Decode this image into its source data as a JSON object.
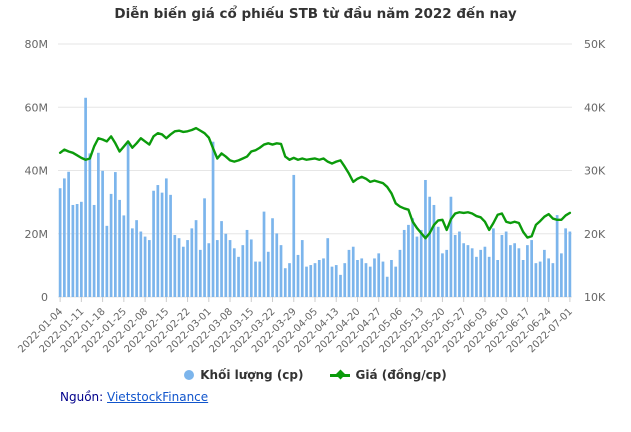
{
  "title": "Diễn biến giá cổ phiếu STB từ đầu năm 2022 đến nay",
  "legend": {
    "items": [
      {
        "label": "Khối lượng (cp)",
        "color": "#7cb5ec",
        "marker": "circle"
      },
      {
        "label": "Giá (đồng/cp)",
        "color": "#0b9b0b",
        "marker": "line-diamond"
      }
    ]
  },
  "source": {
    "prefix": "Nguồn:",
    "link": "VietstockFinance"
  },
  "colors": {
    "background": "#ffffff",
    "grid": "#e6e6e6",
    "axis_label": "#666666",
    "tick": "#cccccc",
    "title": "#333333",
    "source_prefix": "#00008b",
    "link": "#1155cc",
    "volume_bar": "#7cb5ec",
    "price_line": "#0b9b0b"
  },
  "chart_data": {
    "type": "combo",
    "title": "Diễn biến giá cổ phiếu STB từ đầu năm 2022 đến nay",
    "grid": true,
    "legend_position": "bottom",
    "x_tick_interval": 5,
    "x_tick_labels": [
      "2022-01-04",
      "2022-01-11",
      "2022-01-18",
      "2022-01-25",
      "2022-02-08",
      "2022-02-15",
      "2022-02-22",
      "2022-03-01",
      "2022-03-08",
      "2022-03-15",
      "2022-03-22",
      "2022-03-29",
      "2022-04-05",
      "2022-04-13",
      "2022-04-20",
      "2022-04-27",
      "2022-05-06",
      "2022-05-13",
      "2022-05-20",
      "2022-05-27",
      "2022-06-03",
      "2022-06-10",
      "2022-06-17",
      "2022-06-24",
      "2022-07-01"
    ],
    "left_axis": {
      "min": 0,
      "max": 80000000,
      "tick_labels": [
        "0",
        "20M",
        "40M",
        "60M",
        "80M"
      ]
    },
    "right_axis": {
      "min": 10000,
      "max": 50000,
      "tick_labels": [
        "10K",
        "20K",
        "30K",
        "40K",
        "50K"
      ]
    },
    "series": [
      {
        "name": "Khối lượng (cp)",
        "type": "bar",
        "y_axis": "left",
        "color": "#7cb5ec",
        "unit": "million shares",
        "values_millions": [
          34.4,
          37.5,
          39.6,
          29.1,
          29.4,
          30.1,
          63.0,
          45.4,
          29.1,
          45.6,
          39.9,
          22.5,
          32.6,
          39.5,
          30.7,
          25.8,
          49.3,
          21.7,
          24.3,
          20.7,
          19.1,
          18.0,
          33.6,
          35.4,
          33.0,
          37.5,
          32.3,
          19.6,
          18.6,
          15.9,
          18.0,
          21.7,
          24.3,
          14.9,
          31.2,
          17.0,
          49.1,
          18.0,
          24.0,
          20.0,
          18.0,
          15.4,
          12.7,
          16.4,
          21.2,
          18.2,
          11.2,
          11.2,
          27.0,
          14.3,
          24.9,
          20.1,
          16.4,
          9.1,
          10.7,
          38.6,
          13.3,
          18.0,
          9.6,
          10.1,
          10.7,
          11.7,
          12.2,
          18.6,
          9.6,
          10.1,
          7.0,
          10.7,
          14.9,
          15.9,
          11.7,
          12.2,
          10.7,
          9.6,
          12.2,
          13.8,
          11.2,
          6.4,
          11.7,
          9.6,
          14.9,
          21.2,
          22.8,
          24.9,
          19.1,
          21.2,
          37.0,
          31.7,
          29.1,
          22.2,
          13.8,
          14.9,
          31.7,
          19.6,
          20.7,
          17.0,
          16.4,
          15.4,
          12.7,
          14.9,
          15.9,
          12.7,
          21.7,
          11.7,
          19.6,
          20.7,
          16.4,
          17.0,
          15.4,
          11.7,
          16.4,
          18.0,
          10.7,
          11.2,
          14.9,
          12.2,
          10.7,
          25.9,
          13.8,
          21.7,
          20.7
        ]
      },
      {
        "name": "Giá (đồng/cp)",
        "type": "line",
        "y_axis": "right",
        "color": "#0b9b0b",
        "unit": "thousand dong per share",
        "values_thousands": [
          32.8,
          33.3,
          33.0,
          32.8,
          32.4,
          32.0,
          31.7,
          31.9,
          33.8,
          35.1,
          34.9,
          34.6,
          35.4,
          34.3,
          33.0,
          33.8,
          34.6,
          33.6,
          34.3,
          35.1,
          34.6,
          34.1,
          35.4,
          35.9,
          35.7,
          35.1,
          35.7,
          36.2,
          36.3,
          36.1,
          36.2,
          36.4,
          36.7,
          36.3,
          35.9,
          35.2,
          33.5,
          31.9,
          32.7,
          32.2,
          31.6,
          31.4,
          31.6,
          31.9,
          32.2,
          33.0,
          33.2,
          33.6,
          34.1,
          34.3,
          34.1,
          34.3,
          34.2,
          32.2,
          31.7,
          32.0,
          31.7,
          31.9,
          31.7,
          31.8,
          31.9,
          31.7,
          31.9,
          31.4,
          31.1,
          31.4,
          31.6,
          30.6,
          29.5,
          28.2,
          28.7,
          29.0,
          28.7,
          28.2,
          28.4,
          28.2,
          28.0,
          27.4,
          26.4,
          24.8,
          24.3,
          24.0,
          23.8,
          21.9,
          20.9,
          20.1,
          19.3,
          20.1,
          21.4,
          22.1,
          22.2,
          20.6,
          22.3,
          23.2,
          23.4,
          23.3,
          23.4,
          23.2,
          22.8,
          22.6,
          21.9,
          20.6,
          21.7,
          23.0,
          23.2,
          21.9,
          21.7,
          21.9,
          21.7,
          20.3,
          19.4,
          19.6,
          21.4,
          22.0,
          22.7,
          23.1,
          22.4,
          22.2,
          22.2,
          22.9,
          23.3
        ]
      }
    ]
  }
}
